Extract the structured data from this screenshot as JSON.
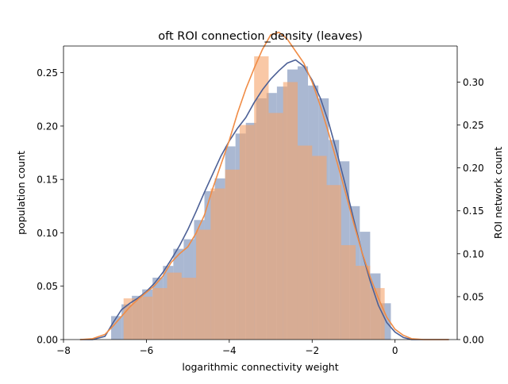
{
  "chart_data": {
    "type": "bar",
    "title": "oft ROI connection_density (leaves)",
    "xlabel": "logarithmic connectivity weight",
    "ylabel": "population count",
    "y2label": "ROI network count",
    "xlim": [
      -8.0,
      1.5
    ],
    "ylim": [
      0,
      0.275
    ],
    "y2lim": [
      0,
      0.342
    ],
    "x_ticks": [
      -8,
      -6,
      -4,
      -2,
      0
    ],
    "y_ticks": [
      0.0,
      0.05,
      0.1,
      0.15,
      0.2,
      0.25
    ],
    "y2_ticks": [
      0.0,
      0.05,
      0.1,
      0.15,
      0.2,
      0.25,
      0.3
    ],
    "grid": false,
    "legend": "none",
    "series": [
      {
        "axis": "left",
        "color": "#4c6096",
        "bar_color": "#aab8d2",
        "bin_edges": [
          -6.85,
          -6.6,
          -6.35,
          -6.1,
          -5.85,
          -5.6,
          -5.35,
          -5.1,
          -4.85,
          -4.6,
          -4.35,
          -4.1,
          -3.85,
          -3.6,
          -3.35,
          -3.1,
          -2.85,
          -2.6,
          -2.35,
          -2.1,
          -1.85,
          -1.6,
          -1.35,
          -1.1,
          -0.85,
          -0.6,
          -0.35,
          -0.1
        ],
        "bar_values": [
          0.022,
          0.033,
          0.041,
          0.047,
          0.058,
          0.069,
          0.085,
          0.094,
          0.112,
          0.139,
          0.151,
          0.181,
          0.193,
          0.203,
          0.226,
          0.231,
          0.237,
          0.253,
          0.256,
          0.238,
          0.226,
          0.187,
          0.167,
          0.125,
          0.101,
          0.062,
          0.034
        ],
        "kde_x": [
          -7.6,
          -7.3,
          -7.0,
          -6.8,
          -6.6,
          -6.4,
          -6.2,
          -6.0,
          -5.8,
          -5.6,
          -5.4,
          -5.2,
          -5.0,
          -4.8,
          -4.6,
          -4.4,
          -4.2,
          -4.0,
          -3.8,
          -3.6,
          -3.4,
          -3.2,
          -3.0,
          -2.8,
          -2.6,
          -2.4,
          -2.2,
          -2.0,
          -1.8,
          -1.6,
          -1.4,
          -1.2,
          -1.0,
          -0.8,
          -0.6,
          -0.4,
          -0.2,
          0.0,
          0.2,
          0.4,
          0.7,
          1.0,
          1.3
        ],
        "kde_y": [
          0.0,
          0.0,
          0.003,
          0.016,
          0.028,
          0.034,
          0.039,
          0.045,
          0.053,
          0.063,
          0.075,
          0.088,
          0.103,
          0.12,
          0.138,
          0.155,
          0.172,
          0.186,
          0.198,
          0.208,
          0.222,
          0.234,
          0.244,
          0.252,
          0.259,
          0.262,
          0.256,
          0.243,
          0.226,
          0.203,
          0.175,
          0.145,
          0.113,
          0.082,
          0.055,
          0.032,
          0.016,
          0.007,
          0.002,
          0.0,
          0.0,
          0.0,
          0.0
        ]
      },
      {
        "axis": "right",
        "color": "#f08c46",
        "bar_color": "#f5a36b",
        "bar_opacity": 0.6,
        "bin_edges": [
          -6.55,
          -6.2,
          -5.85,
          -5.5,
          -5.15,
          -4.8,
          -4.45,
          -4.1,
          -3.75,
          -3.4,
          -3.05,
          -2.7,
          -2.35,
          -2.0,
          -1.65,
          -1.3,
          -0.95,
          -0.6,
          -0.25
        ],
        "bar_values": [
          0.048,
          0.05,
          0.06,
          0.078,
          0.072,
          0.128,
          0.176,
          0.198,
          0.25,
          0.33,
          0.264,
          0.3,
          0.226,
          0.214,
          0.18,
          0.11,
          0.086,
          0.06
        ],
        "kde_x": [
          -7.6,
          -7.3,
          -7.0,
          -6.8,
          -6.6,
          -6.4,
          -6.2,
          -6.0,
          -5.8,
          -5.6,
          -5.4,
          -5.2,
          -5.0,
          -4.8,
          -4.6,
          -4.4,
          -4.2,
          -4.0,
          -3.8,
          -3.6,
          -3.4,
          -3.2,
          -3.0,
          -2.8,
          -2.6,
          -2.4,
          -2.2,
          -2.0,
          -1.8,
          -1.6,
          -1.4,
          -1.2,
          -1.0,
          -0.8,
          -0.6,
          -0.4,
          -0.2,
          0.0,
          0.2,
          0.4,
          0.7,
          1.0,
          1.3
        ],
        "kde_y": [
          0.0,
          0.001,
          0.006,
          0.016,
          0.027,
          0.038,
          0.047,
          0.055,
          0.063,
          0.074,
          0.09,
          0.1,
          0.108,
          0.124,
          0.145,
          0.176,
          0.204,
          0.232,
          0.264,
          0.292,
          0.316,
          0.338,
          0.355,
          0.358,
          0.35,
          0.336,
          0.322,
          0.3,
          0.272,
          0.24,
          0.207,
          0.172,
          0.136,
          0.102,
          0.073,
          0.048,
          0.026,
          0.012,
          0.005,
          0.001,
          0.0,
          0.0,
          0.0
        ]
      }
    ]
  }
}
